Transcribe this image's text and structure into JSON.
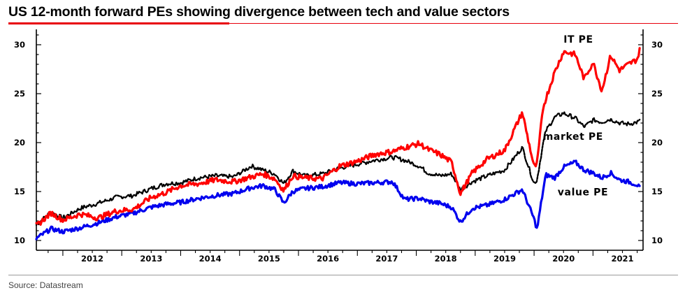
{
  "title": "US 12-month forward PEs showing divergence between tech and value sectors",
  "source": "Source: Datastream",
  "colors": {
    "accent": "#e8000b",
    "it": "#ff0000",
    "market": "#000000",
    "value": "#0000ee"
  },
  "chart_data": {
    "type": "line",
    "title": "US 12-month forward PEs showing divergence between tech and value sectors",
    "xlabel": "",
    "ylabel": "",
    "ylim": [
      9,
      31
    ],
    "xlim": [
      2011.55,
      2021.85
    ],
    "yticks": [
      10,
      15,
      20,
      25,
      30
    ],
    "categories": [
      "2012",
      "2013",
      "2014",
      "2015",
      "2016",
      "2017",
      "2018",
      "2019",
      "2020",
      "2021"
    ],
    "series": [
      {
        "name": "IT PE",
        "label": "IT PE",
        "color": "#ff0000",
        "x": [
          2011.55,
          2011.8,
          2012.0,
          2012.3,
          2012.6,
          2012.9,
          2013.2,
          2013.5,
          2013.75,
          2014.0,
          2014.3,
          2014.6,
          2014.9,
          2015.2,
          2015.4,
          2015.6,
          2015.75,
          2015.9,
          2016.1,
          2016.4,
          2016.7,
          2017.0,
          2017.3,
          2017.6,
          2017.8,
          2018.05,
          2018.2,
          2018.4,
          2018.6,
          2018.75,
          2018.95,
          2019.2,
          2019.5,
          2019.8,
          2020.0,
          2020.05,
          2020.15,
          2020.2,
          2020.35,
          2020.5,
          2020.7,
          2020.85,
          2021.0,
          2021.15,
          2021.3,
          2021.45,
          2021.6,
          2021.75,
          2021.8
        ],
        "values": [
          11.5,
          12.8,
          12.1,
          12.7,
          12.3,
          13.0,
          13.2,
          14.4,
          14.9,
          15.6,
          15.8,
          16.2,
          16.0,
          16.5,
          16.8,
          16.3,
          15.1,
          16.6,
          16.4,
          16.3,
          17.6,
          18.1,
          18.8,
          19.1,
          19.5,
          19.9,
          19.3,
          18.8,
          18.0,
          14.8,
          16.9,
          18.3,
          19.2,
          23.1,
          17.5,
          17.8,
          23.5,
          24.5,
          27.2,
          29.3,
          29.0,
          26.5,
          28.2,
          25.3,
          28.9,
          27.4,
          28.0,
          28.5,
          29.6
        ]
      },
      {
        "name": "market PE",
        "label": "market PE",
        "color": "#000000",
        "x": [
          2011.55,
          2011.8,
          2012.0,
          2012.3,
          2012.6,
          2012.9,
          2013.2,
          2013.5,
          2013.75,
          2014.0,
          2014.3,
          2014.6,
          2014.9,
          2015.2,
          2015.4,
          2015.6,
          2015.75,
          2015.9,
          2016.1,
          2016.4,
          2016.7,
          2017.0,
          2017.3,
          2017.6,
          2017.8,
          2018.05,
          2018.2,
          2018.4,
          2018.6,
          2018.75,
          2018.95,
          2019.2,
          2019.5,
          2019.8,
          2020.0,
          2020.05,
          2020.15,
          2020.2,
          2020.35,
          2020.5,
          2020.7,
          2020.85,
          2021.0,
          2021.15,
          2021.3,
          2021.45,
          2021.6,
          2021.75,
          2021.8
        ],
        "values": [
          11.6,
          12.9,
          12.3,
          13.3,
          13.8,
          14.4,
          14.6,
          15.3,
          15.8,
          15.9,
          16.4,
          16.6,
          16.5,
          17.6,
          17.2,
          16.8,
          15.8,
          17.1,
          16.6,
          16.8,
          17.4,
          17.8,
          18.2,
          18.5,
          18.2,
          17.6,
          16.9,
          16.6,
          16.8,
          15.2,
          16.0,
          16.6,
          17.2,
          19.5,
          15.8,
          16.2,
          19.8,
          21.2,
          22.6,
          23.0,
          22.5,
          21.6,
          22.3,
          22.1,
          22.4,
          22.0,
          21.9,
          22.1,
          22.2
        ]
      },
      {
        "name": "value PE",
        "label": "value PE",
        "color": "#0000ee",
        "x": [
          2011.55,
          2011.8,
          2012.0,
          2012.3,
          2012.6,
          2012.9,
          2013.2,
          2013.5,
          2013.75,
          2014.0,
          2014.3,
          2014.6,
          2014.9,
          2015.2,
          2015.4,
          2015.6,
          2015.75,
          2015.9,
          2016.1,
          2016.4,
          2016.7,
          2017.0,
          2017.3,
          2017.6,
          2017.8,
          2018.05,
          2018.2,
          2018.4,
          2018.6,
          2018.75,
          2018.95,
          2019.2,
          2019.5,
          2019.8,
          2020.0,
          2020.05,
          2020.15,
          2020.2,
          2020.35,
          2020.5,
          2020.7,
          2020.85,
          2021.0,
          2021.15,
          2021.3,
          2021.45,
          2021.6,
          2021.75,
          2021.8
        ],
        "values": [
          10.2,
          11.2,
          10.9,
          11.3,
          11.8,
          12.4,
          12.8,
          13.4,
          13.7,
          13.9,
          14.3,
          14.6,
          14.8,
          15.4,
          15.6,
          15.2,
          13.8,
          15.0,
          15.3,
          15.5,
          15.9,
          15.8,
          15.9,
          16.0,
          14.2,
          14.3,
          14.0,
          13.8,
          13.4,
          11.9,
          13.3,
          13.6,
          14.2,
          15.2,
          12.2,
          11.1,
          15.0,
          16.7,
          16.4,
          17.5,
          18.0,
          17.2,
          16.9,
          16.4,
          16.9,
          16.2,
          16.0,
          15.7,
          15.3
        ]
      }
    ]
  }
}
